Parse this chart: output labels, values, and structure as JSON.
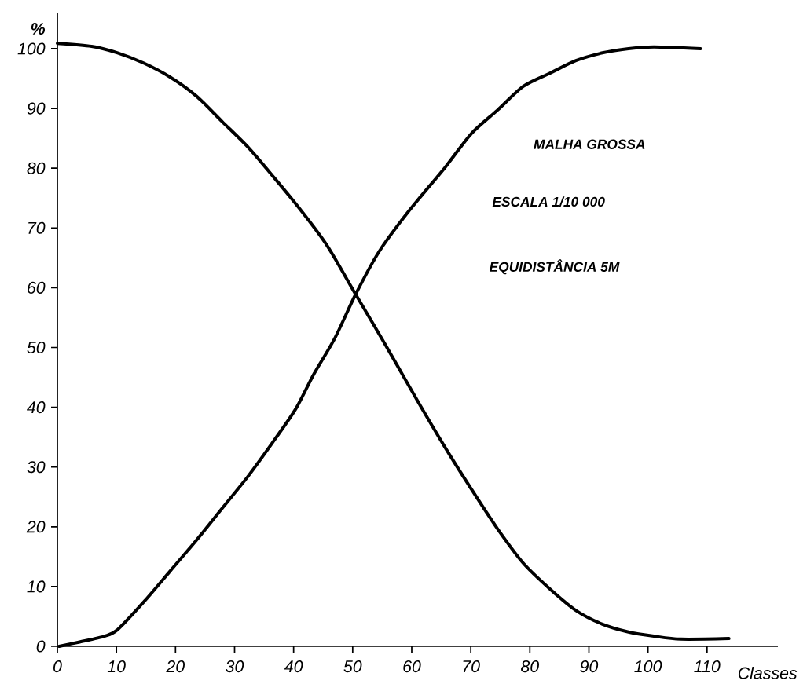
{
  "chart_data": {
    "type": "line",
    "xlabel": "Classes",
    "ylabel": "%",
    "xlim": [
      0,
      122
    ],
    "ylim": [
      0,
      106
    ],
    "xticks": [
      0,
      10,
      20,
      30,
      40,
      50,
      60,
      70,
      80,
      90,
      100,
      110
    ],
    "yticks": [
      0,
      10,
      20,
      30,
      40,
      50,
      60,
      70,
      80,
      90,
      100
    ],
    "marker": "none",
    "line_style": "solid",
    "annotations": [
      "MALHA GROSSA",
      "ESCALA 1/10 000",
      "EQUIDISTÂNCIA 5M"
    ],
    "series": [
      {
        "color": "#000000",
        "x": [
          0,
          5.8,
          10.2,
          14.6,
          19,
          23.5,
          27.9,
          32.4,
          36.8,
          41.2,
          45.7,
          50.5,
          55.4,
          61.2,
          65.7,
          70.1,
          74.5,
          78.9,
          83.4,
          87.8,
          92.3,
          96.7,
          101,
          105.6,
          113.7
        ],
        "values": [
          100.9,
          100.4,
          99.3,
          97.6,
          95.3,
          92.1,
          87.8,
          83.4,
          78.3,
          73,
          67,
          58.9,
          50.7,
          40.7,
          33.2,
          26.3,
          19.7,
          13.9,
          9.6,
          6,
          3.7,
          2.4,
          1.7,
          1.2,
          1.3
        ]
      },
      {
        "color": "#000000",
        "x": [
          0.3,
          3.6,
          8,
          10.2,
          14.6,
          19.1,
          23.5,
          27.9,
          32.4,
          36.8,
          40.4,
          43.4,
          47,
          50.5,
          54.5,
          59.4,
          65.7,
          70.1,
          74.5,
          78.9,
          83.4,
          87.8,
          92.3,
          96.7,
          101,
          108.9
        ],
        "values": [
          0,
          0.7,
          1.7,
          2.8,
          7.4,
          12.6,
          17.7,
          23.1,
          28.6,
          34.6,
          39.8,
          45.5,
          51.6,
          58.9,
          66.1,
          72.7,
          80.2,
          85.8,
          89.7,
          93.7,
          95.9,
          98,
          99.3,
          100,
          100.3,
          100
        ]
      }
    ]
  }
}
